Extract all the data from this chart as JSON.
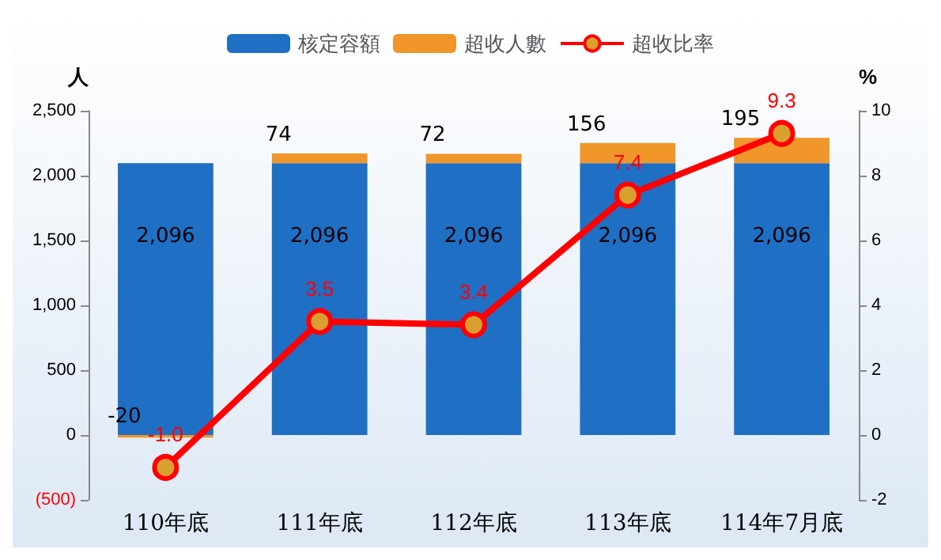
{
  "chart_data": {
    "type": "bar",
    "stacked": true,
    "categories": [
      "110年底",
      "111年底",
      "112年底",
      "113年底",
      "114年7月底"
    ],
    "series": [
      {
        "name": "核定容額",
        "color": "#1f6fc5",
        "values": [
          2096,
          2096,
          2096,
          2096,
          2096
        ],
        "value_labels": [
          "2,096",
          "2,096",
          "2,096",
          "2,096",
          "2,096"
        ]
      },
      {
        "name": "超收人數",
        "color": "#f0962a",
        "values": [
          -20,
          74,
          72,
          156,
          195
        ],
        "value_labels": [
          "-20",
          "74",
          "72",
          "156",
          "195"
        ]
      },
      {
        "name": "超收比率",
        "type": "line",
        "axis": "y2",
        "color": "#ff0000",
        "marker": "circle",
        "values": [
          -1.0,
          3.5,
          3.4,
          7.4,
          9.3
        ],
        "value_labels": [
          "-1.0",
          "3.5",
          "3.4",
          "7.4",
          "9.3"
        ]
      }
    ],
    "ylabel": "人",
    "y2label": "%",
    "ylim": [
      -500,
      2500
    ],
    "yticks": [
      {
        "value": -500,
        "label": "(500)"
      },
      0,
      500,
      {
        "value": 1000,
        "label": "1,000"
      },
      {
        "value": 1500,
        "label": "1,500"
      },
      {
        "value": 2000,
        "label": "2,000"
      },
      {
        "value": 2500,
        "label": "2,500"
      }
    ],
    "y2lim": [
      -2,
      10
    ],
    "y2ticks": [
      -2,
      0,
      2,
      4,
      6,
      8,
      10
    ],
    "legend": "top",
    "grid": false
  }
}
